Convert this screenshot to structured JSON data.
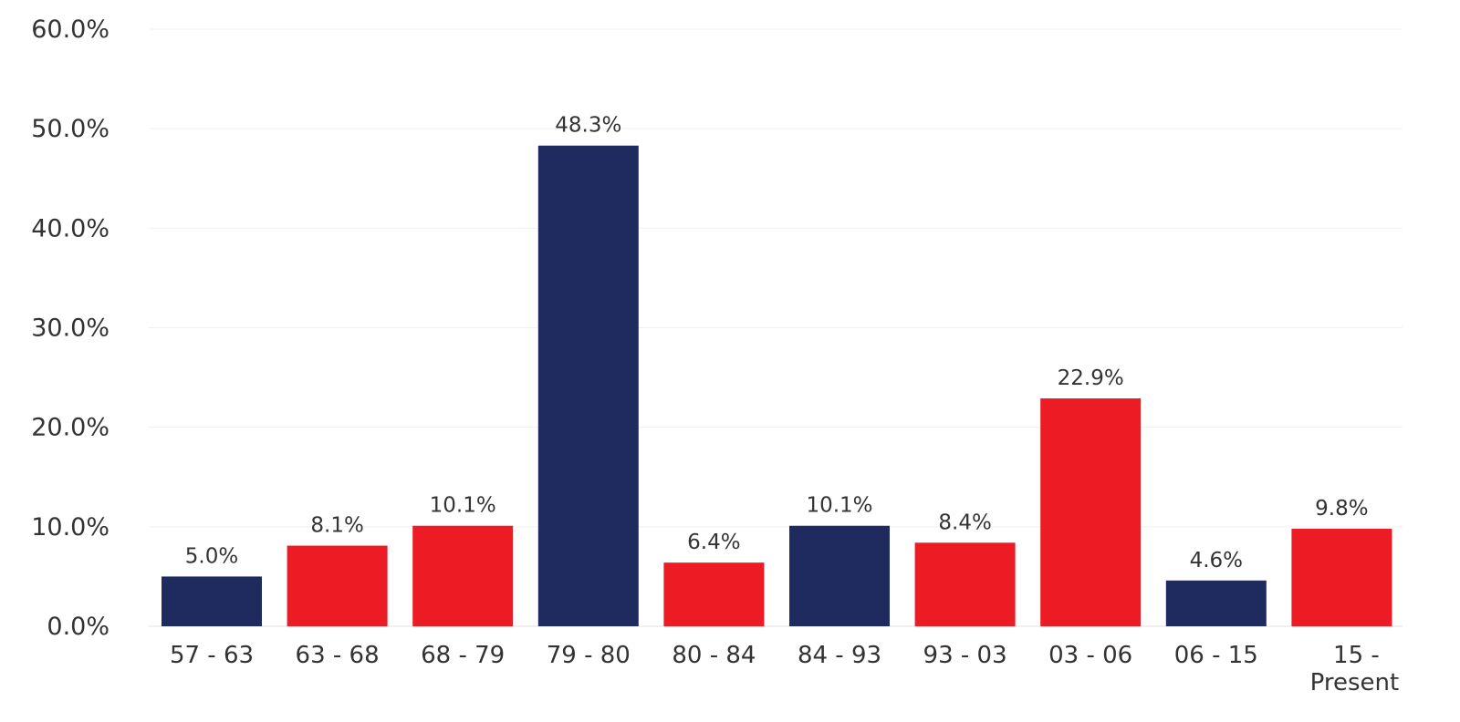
{
  "chart_data": {
    "type": "bar",
    "title": "",
    "xlabel": "",
    "ylabel": "",
    "ylim": [
      0,
      60
    ],
    "y_ticks": [
      0,
      10,
      20,
      30,
      40,
      50,
      60
    ],
    "y_tick_labels": [
      "0.0%",
      "10.0%",
      "20.0%",
      "30.0%",
      "40.0%",
      "50.0%",
      "60.0%"
    ],
    "grid": true,
    "legend": "none",
    "categories": [
      [
        "57 - 63"
      ],
      [
        "63 - 68"
      ],
      [
        "68 - 79"
      ],
      [
        "79 - 80"
      ],
      [
        "80 - 84"
      ],
      [
        "84 - 93"
      ],
      [
        "93 - 03"
      ],
      [
        "03 - 06"
      ],
      [
        "06 - 15"
      ],
      [
        "15 -",
        "Present"
      ]
    ],
    "values": [
      5.0,
      8.1,
      10.1,
      48.3,
      6.4,
      10.1,
      8.4,
      22.9,
      4.6,
      9.8
    ],
    "value_labels": [
      "5.0%",
      "8.1%",
      "10.1%",
      "48.3%",
      "6.4%",
      "10.1%",
      "8.4%",
      "22.9%",
      "4.6%",
      "9.8%"
    ],
    "bar_colors": [
      "#1f2a5e",
      "#ed1c24",
      "#ed1c24",
      "#1f2a5e",
      "#ed1c24",
      "#1f2a5e",
      "#ed1c24",
      "#ed1c24",
      "#1f2a5e",
      "#ed1c24"
    ]
  }
}
